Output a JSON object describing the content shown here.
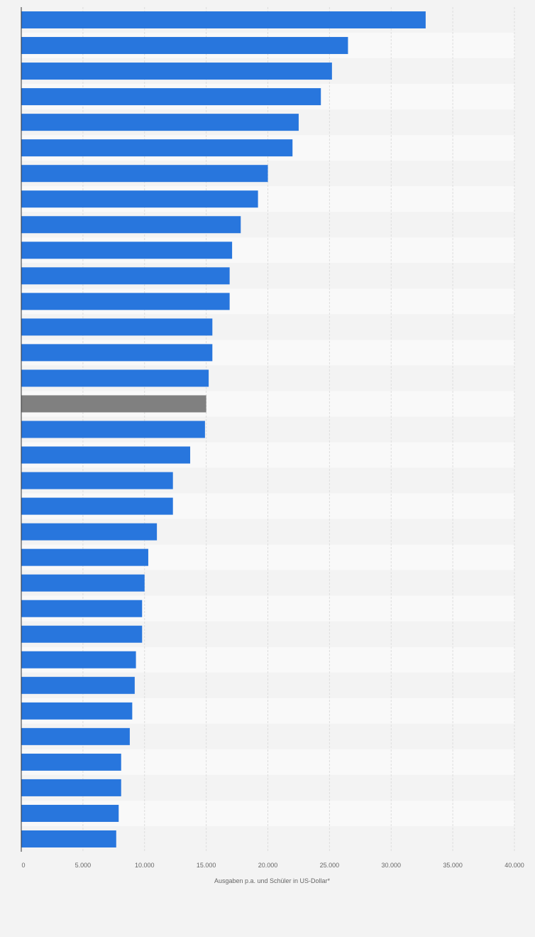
{
  "chart_data": {
    "type": "bar",
    "orientation": "horizontal",
    "values": [
      32800,
      26500,
      25200,
      24300,
      22500,
      22000,
      20000,
      19200,
      17800,
      17100,
      16900,
      16900,
      15500,
      15500,
      15200,
      15000,
      14900,
      13700,
      12300,
      12300,
      11000,
      10300,
      10000,
      9800,
      9800,
      9300,
      9200,
      9000,
      8800,
      8100,
      8100,
      7900,
      7700
    ],
    "highlight_index": 15,
    "xlim": [
      0,
      40000
    ],
    "x_ticks": [
      0,
      5000,
      10000,
      15000,
      20000,
      25000,
      30000,
      35000,
      40000
    ],
    "x_tick_labels": [
      "0",
      "5.000",
      "10.000",
      "15.000",
      "20.000",
      "25.000",
      "30.000",
      "35.000",
      "40.000"
    ],
    "xlabel": "Ausgaben p.a. und Schüler in US-Dollar*",
    "title": "",
    "grid": true
  },
  "colors": {
    "bar": "#2876dd",
    "bar_highlight": "#808080",
    "row_light": "#f9f9f9",
    "row_dark": "#f3f3f3",
    "gridline": "#dddddd",
    "axis": "#333333"
  }
}
